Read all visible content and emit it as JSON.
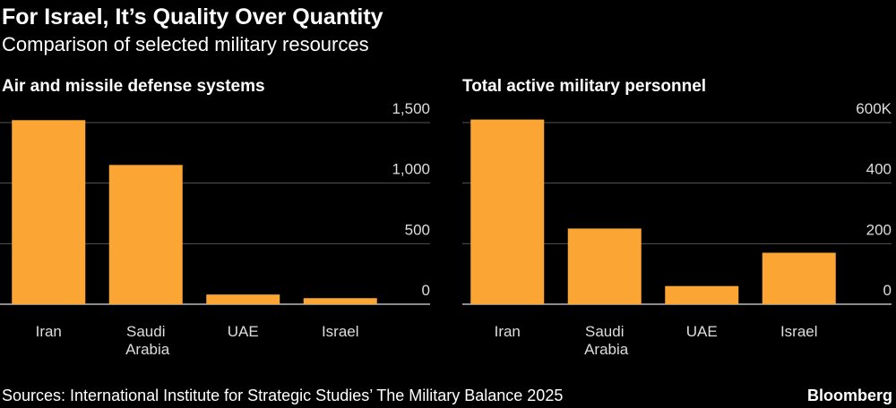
{
  "title": "For Israel, It’s Quality Over Quantity",
  "subtitle": "Comparison of selected military resources",
  "source": "Sources: International Institute for Strategic Studies’ The Military Balance 2025",
  "brand": "Bloomberg",
  "chart_data": [
    {
      "type": "bar",
      "title": "Air and missile defense systems",
      "categories": [
        "Iran",
        "Saudi Arabia",
        "UAE",
        "Israel"
      ],
      "values": [
        1520,
        1150,
        80,
        50
      ],
      "color": "#fba634",
      "ylim": [
        0,
        1500
      ],
      "yticks": [
        0,
        500,
        {
          "value": 1000,
          "label": "1,000"
        },
        {
          "value": 1500,
          "label": "1,500"
        }
      ],
      "grid": true
    },
    {
      "type": "bar",
      "title": "Total active military personnel",
      "categories": [
        "Iran",
        "Saudi Arabia",
        "UAE",
        "Israel"
      ],
      "values": [
        610,
        250,
        60,
        170
      ],
      "color": "#fba634",
      "ylim": [
        0,
        600
      ],
      "yticks": [
        0,
        200,
        400,
        {
          "value": 600,
          "label": "600K"
        }
      ],
      "grid": true
    }
  ]
}
